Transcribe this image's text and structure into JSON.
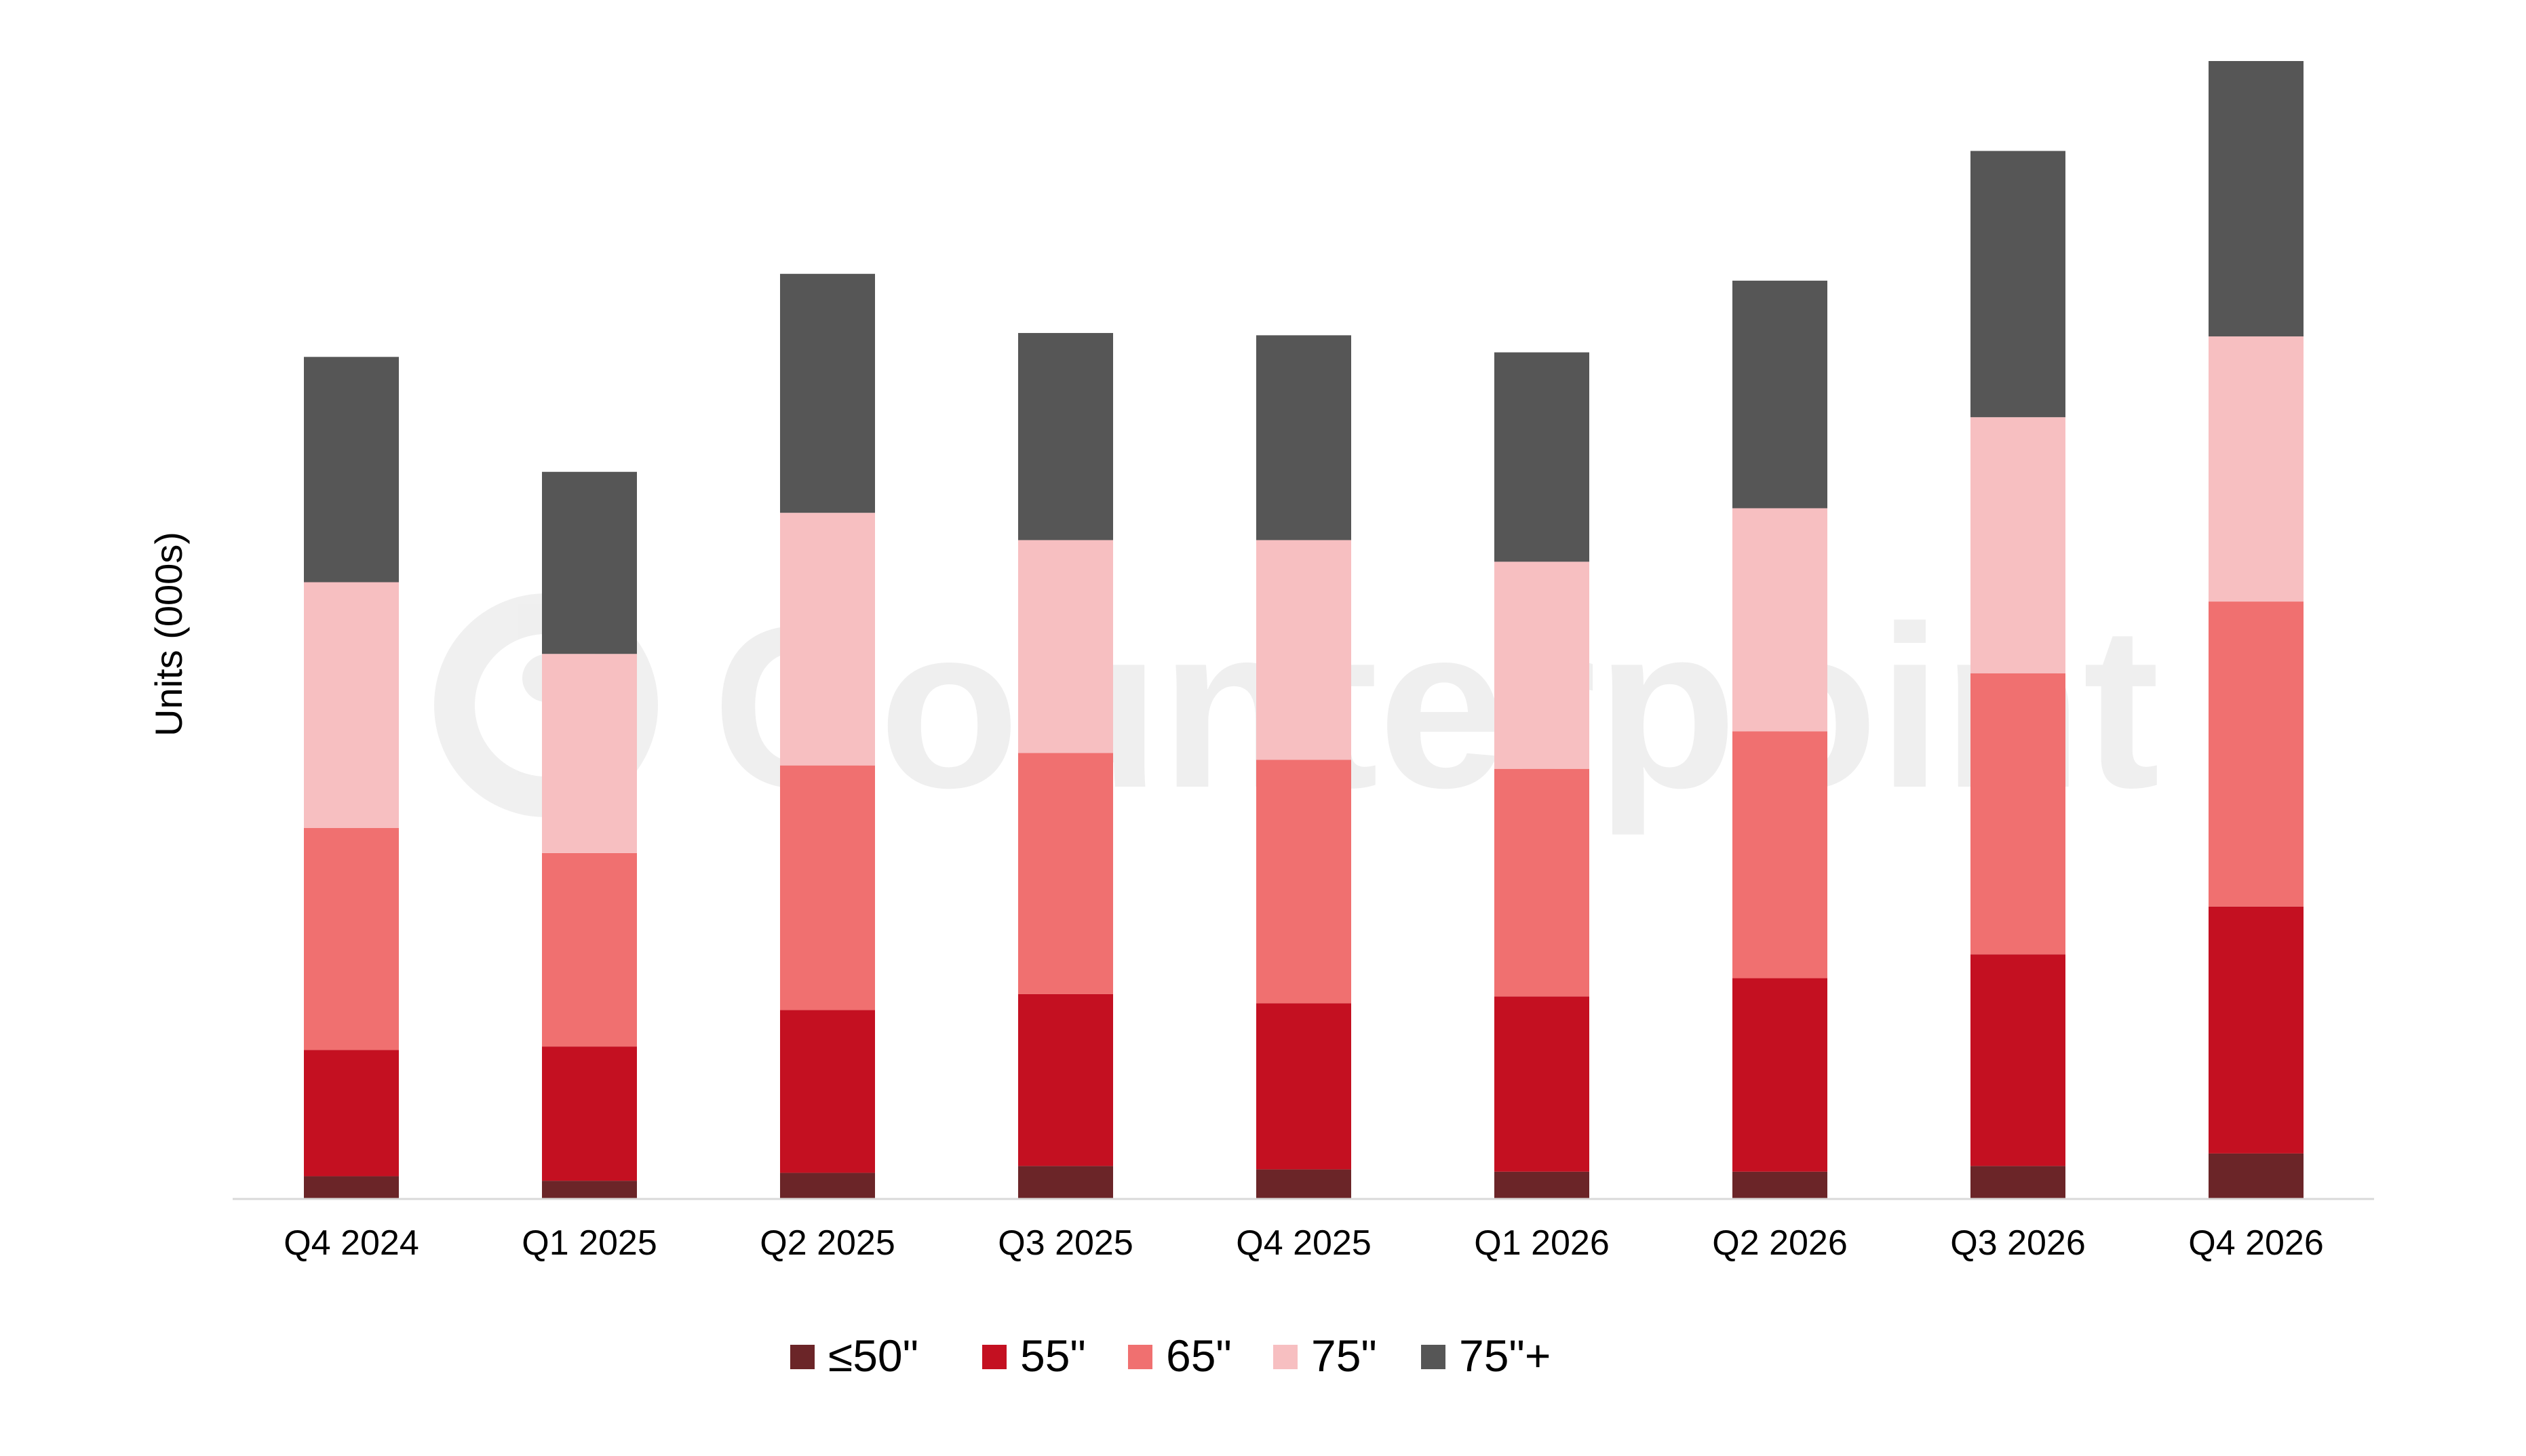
{
  "watermark": "Counterpoint",
  "chart_data": {
    "type": "bar",
    "stacked": true,
    "title": "",
    "xlabel": "",
    "ylabel": "Units (000s)",
    "ylim": [
      0,
      100
    ],
    "grid": false,
    "legend_position": "bottom",
    "categories": [
      "Q4 2024",
      "Q1 2025",
      "Q2 2025",
      "Q3 2025",
      "Q4 2025",
      "Q1 2026",
      "Q2 2026",
      "Q3 2026",
      "Q4 2026"
    ],
    "series": [
      {
        "name": "≤50\"",
        "color": "#6b2528",
        "values": [
          2.0,
          1.6,
          2.3,
          2.9,
          2.6,
          2.4,
          2.4,
          2.9,
          4.0
        ]
      },
      {
        "name": "55\"",
        "color": "#c41021",
        "values": [
          11.1,
          11.8,
          14.3,
          15.1,
          14.6,
          15.4,
          17.0,
          18.6,
          21.7
        ]
      },
      {
        "name": "65\"",
        "color": "#f07070",
        "values": [
          19.5,
          17.0,
          21.5,
          21.2,
          21.4,
          20.0,
          21.7,
          24.7,
          26.8
        ]
      },
      {
        "name": "75\"",
        "color": "#f7bfc1",
        "values": [
          21.6,
          17.5,
          22.2,
          18.7,
          19.3,
          18.2,
          19.6,
          22.5,
          23.3
        ]
      },
      {
        "name": "75\"+",
        "color": "#565656",
        "values": [
          19.8,
          16.0,
          21.0,
          18.2,
          18.0,
          18.4,
          20.0,
          23.4,
          24.2
        ]
      }
    ]
  }
}
